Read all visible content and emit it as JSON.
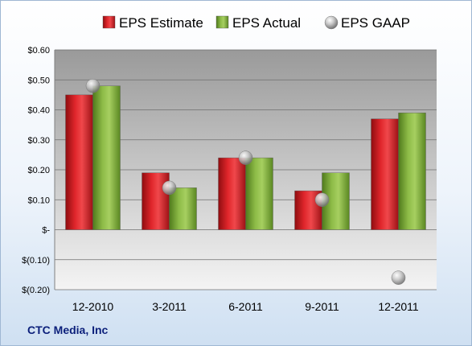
{
  "chart_data": {
    "type": "bar",
    "categories": [
      "12-2010",
      "3-2011",
      "6-2011",
      "9-2011",
      "12-2011"
    ],
    "series": [
      {
        "name": "EPS Estimate",
        "kind": "bar",
        "color": "#c8161c",
        "values": [
          0.45,
          0.19,
          0.24,
          0.13,
          0.37
        ]
      },
      {
        "name": "EPS Actual",
        "kind": "bar",
        "color": "#7aa83a",
        "values": [
          0.48,
          0.14,
          0.24,
          0.19,
          0.39
        ]
      },
      {
        "name": "EPS GAAP",
        "kind": "marker",
        "color": "#a9a9a9",
        "values": [
          0.48,
          0.14,
          0.24,
          0.1,
          -0.16
        ]
      }
    ],
    "y_ticks": [
      {
        "value": 0.6,
        "label": "$0.60"
      },
      {
        "value": 0.5,
        "label": "$0.50"
      },
      {
        "value": 0.4,
        "label": "$0.40"
      },
      {
        "value": 0.3,
        "label": "$0.30"
      },
      {
        "value": 0.2,
        "label": "$0.20"
      },
      {
        "value": 0.1,
        "label": "$0.10"
      },
      {
        "value": 0,
        "label": "$-"
      },
      {
        "value": -0.1,
        "label": "$(0.10)"
      },
      {
        "value": -0.2,
        "label": "$(0.20)"
      }
    ],
    "ylim": [
      -0.2,
      0.6
    ],
    "grid": true,
    "legend_position": "top",
    "footer": "CTC Media, Inc"
  }
}
